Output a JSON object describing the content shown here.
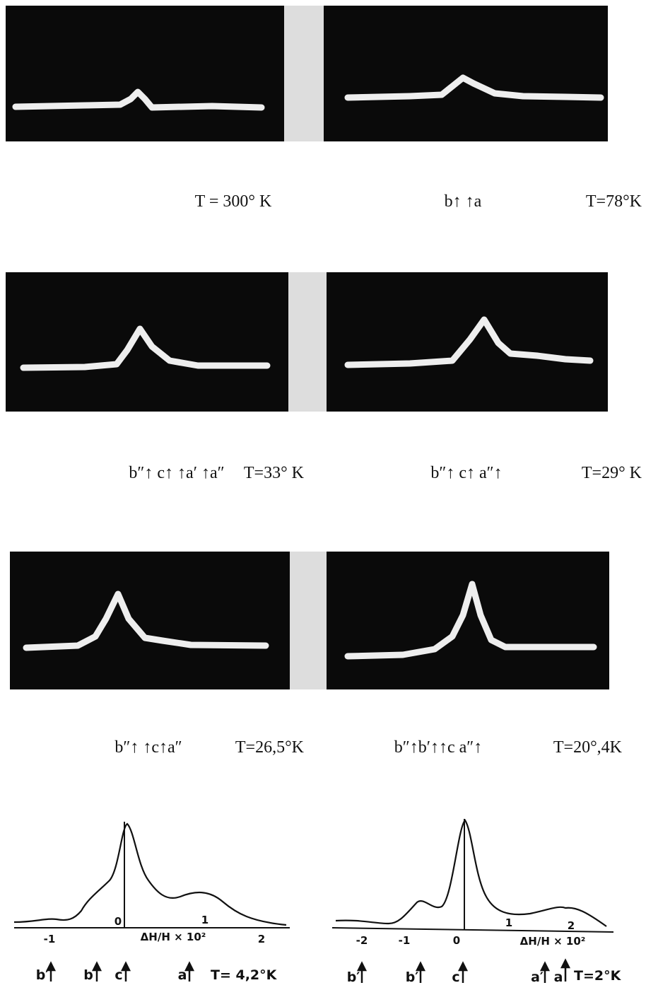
{
  "panels": [
    {
      "captions": [
        "T = 300° K"
      ]
    },
    {
      "captions": [
        "b↑ ↑a",
        "T=78°K"
      ]
    },
    {
      "captions": [
        "b″↑ c↑ ↑a′ ↑a″",
        "T=33° K"
      ]
    },
    {
      "captions": [
        "b″↑ c↑ a″↑",
        "T=29° K"
      ]
    },
    {
      "captions": [
        "b″↑ ↑c↑a″",
        "T=26,5°K"
      ]
    },
    {
      "captions": [
        "b″↑b′↑↑c a″↑",
        "T=20°,4K"
      ]
    }
  ],
  "plots": [
    {
      "ticks": [
        "-1",
        "0",
        "1",
        "2"
      ],
      "axis_label": "ΔH/H × 10²",
      "arrows": [
        "b′",
        "b",
        "c",
        "a"
      ],
      "temperature": "T= 4,2°K"
    },
    {
      "ticks": [
        "-2",
        "-1",
        "0",
        "1",
        "2"
      ],
      "axis_label": "ΔH/H × 10²",
      "arrows": [
        "b′",
        "b′",
        "c",
        "a′",
        "a"
      ],
      "temperature": "T=2°K"
    }
  ]
}
